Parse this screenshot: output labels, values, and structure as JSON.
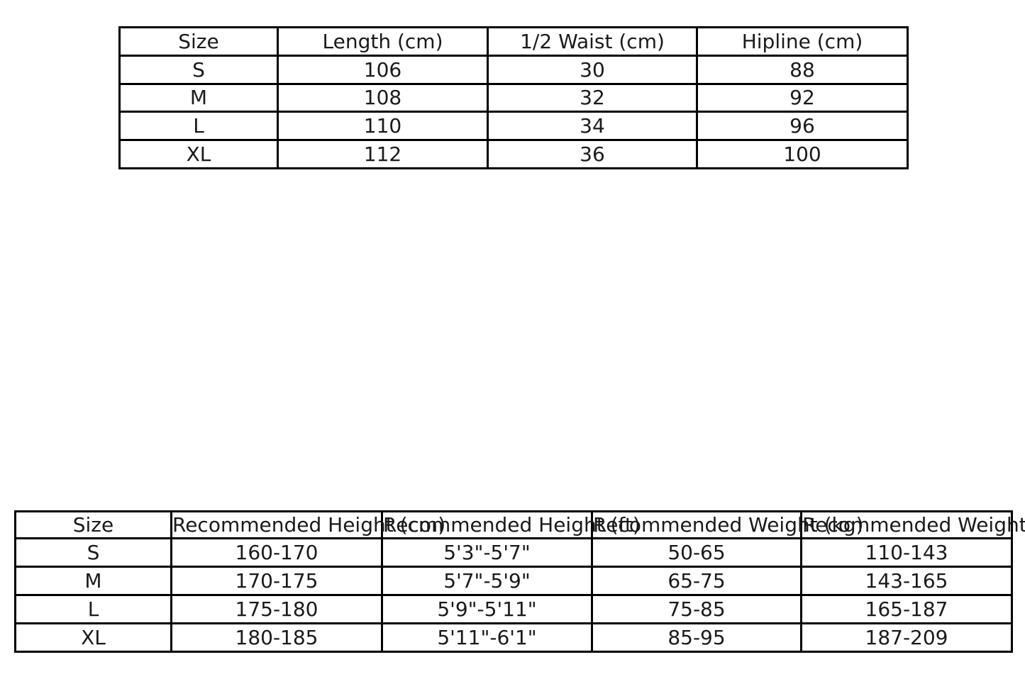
{
  "page": {
    "background": "#ffffff",
    "text_color": "#1a1a1a",
    "border_color": "#000000"
  },
  "chart_data": [
    {
      "type": "table",
      "title": "",
      "columns": [
        "Size",
        "Length (cm)",
        "1/2 Waist (cm)",
        "Hipline (cm)"
      ],
      "rows": [
        [
          "S",
          "106",
          "30",
          "88"
        ],
        [
          "M",
          "108",
          "32",
          "92"
        ],
        [
          "L",
          "110",
          "34",
          "96"
        ],
        [
          "XL",
          "112",
          "36",
          "100"
        ]
      ]
    },
    {
      "type": "table",
      "title": "",
      "columns": [
        "Size",
        "Recommended Height (cm)",
        "Recommended Height (ft)",
        "Recommended Weight (kg)",
        "Recommended Weight (lbs)"
      ],
      "rows": [
        [
          "S",
          "160-170",
          "5'3\"-5'7\"",
          "50-65",
          "110-143"
        ],
        [
          "M",
          "170-175",
          "5'7\"-5'9\"",
          "65-75",
          "143-165"
        ],
        [
          "L",
          "175-180",
          "5'9\"-5'11\"",
          "75-85",
          "165-187"
        ],
        [
          "XL",
          "180-185",
          "5'11\"-6'1\"",
          "85-95",
          "187-209"
        ]
      ]
    }
  ]
}
